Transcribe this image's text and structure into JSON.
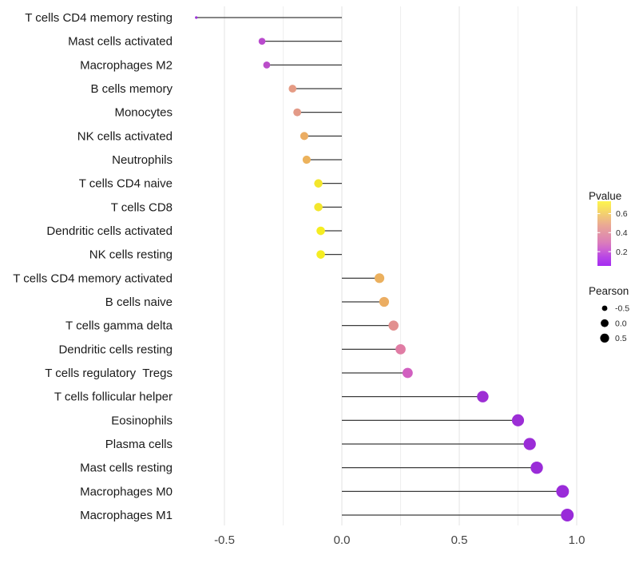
{
  "chart_data": {
    "type": "lollipop",
    "title": "",
    "xlabel": "",
    "ylabel": "",
    "x_axis": {
      "major_ticks": [
        -0.5,
        0.0,
        0.5,
        1.0
      ],
      "tick_labels": [
        "-0.5",
        "0.0",
        "0.5",
        "1.0"
      ],
      "minor_ticks": [
        -0.25,
        0.25,
        0.75
      ],
      "range": [
        -0.7,
        1.04
      ],
      "zero_baseline": 0.0
    },
    "points": [
      {
        "label": "T cells CD4 memory resting",
        "pearson": -0.62,
        "pvalue": 0.05,
        "color": "#9b2fd9"
      },
      {
        "label": "Mast cells activated",
        "pearson": -0.34,
        "pvalue": 0.14,
        "color": "#b94acd"
      },
      {
        "label": "Macrophages M2",
        "pearson": -0.32,
        "pvalue": 0.15,
        "color": "#ba4dc9"
      },
      {
        "label": "B cells memory",
        "pearson": -0.21,
        "pvalue": 0.44,
        "color": "#e59b84"
      },
      {
        "label": "Monocytes",
        "pearson": -0.19,
        "pvalue": 0.43,
        "color": "#e39a87"
      },
      {
        "label": "NK cells activated",
        "pearson": -0.16,
        "pvalue": 0.52,
        "color": "#ebad63"
      },
      {
        "label": "Neutrophils",
        "pearson": -0.15,
        "pvalue": 0.54,
        "color": "#ecb25c"
      },
      {
        "label": "T cells CD4 naive",
        "pearson": -0.1,
        "pvalue": 0.66,
        "color": "#f3e62c"
      },
      {
        "label": "T cells CD8",
        "pearson": -0.1,
        "pvalue": 0.66,
        "color": "#f3e62c"
      },
      {
        "label": "Dendritic cells activated",
        "pearson": -0.09,
        "pvalue": 0.7,
        "color": "#f5ed22"
      },
      {
        "label": "NK cells resting",
        "pearson": -0.09,
        "pvalue": 0.7,
        "color": "#f5ed22"
      },
      {
        "label": "T cells CD4 memory activated",
        "pearson": 0.16,
        "pvalue": 0.53,
        "color": "#ebb05e"
      },
      {
        "label": "B cells naive",
        "pearson": 0.18,
        "pvalue": 0.52,
        "color": "#ebad62"
      },
      {
        "label": "T cells gamma delta",
        "pearson": 0.22,
        "pvalue": 0.4,
        "color": "#e2908f"
      },
      {
        "label": "Dendritic cells resting",
        "pearson": 0.25,
        "pvalue": 0.33,
        "color": "#e07ca4"
      },
      {
        "label": "T cells regulatory  Tregs",
        "pearson": 0.28,
        "pvalue": 0.24,
        "color": "#d160c0"
      },
      {
        "label": "T cells follicular helper",
        "pearson": 0.6,
        "pvalue": 0.06,
        "color": "#9d2fd4"
      },
      {
        "label": "Eosinophils",
        "pearson": 0.75,
        "pvalue": 0.05,
        "color": "#9c2ed6"
      },
      {
        "label": "Plasma cells",
        "pearson": 0.8,
        "pvalue": 0.04,
        "color": "#9b2dd7"
      },
      {
        "label": "Mast cells resting",
        "pearson": 0.83,
        "pvalue": 0.04,
        "color": "#9a2cd8"
      },
      {
        "label": "Macrophages M0",
        "pearson": 0.94,
        "pvalue": 0.02,
        "color": "#9a2bd9"
      },
      {
        "label": "Macrophages M1",
        "pearson": 0.96,
        "pvalue": 0.02,
        "color": "#992bd9"
      }
    ],
    "legends": {
      "pvalue": {
        "title": "Pvalue",
        "bar_domain": [
          0.05,
          0.73
        ],
        "ticks": [
          {
            "label": "0.6",
            "value": 0.6
          },
          {
            "label": "0.4",
            "value": 0.4
          },
          {
            "label": "0.2",
            "value": 0.2
          }
        ],
        "gradient_top_to_bottom": [
          "#fdf54e",
          "#f7dd61",
          "#f0c37c",
          "#eaa795",
          "#e294a6",
          "#dc80b8",
          "#cd62d2",
          "#b543e7",
          "#a52df1"
        ]
      },
      "pearson": {
        "title": "Pearson",
        "items": [
          {
            "label": "-0.5",
            "value": -0.5
          },
          {
            "label": "0.0",
            "value": 0.0
          },
          {
            "label": "0.5",
            "value": 0.5
          }
        ],
        "dot_color": "#000000"
      }
    },
    "colors": {
      "background": "#ffffff",
      "stem": "#3c3c3c",
      "grid_major": "#e3e3e3",
      "grid_minor": "#efefef",
      "axis_text": "#454545",
      "label_text": "#1a1a1a"
    }
  }
}
